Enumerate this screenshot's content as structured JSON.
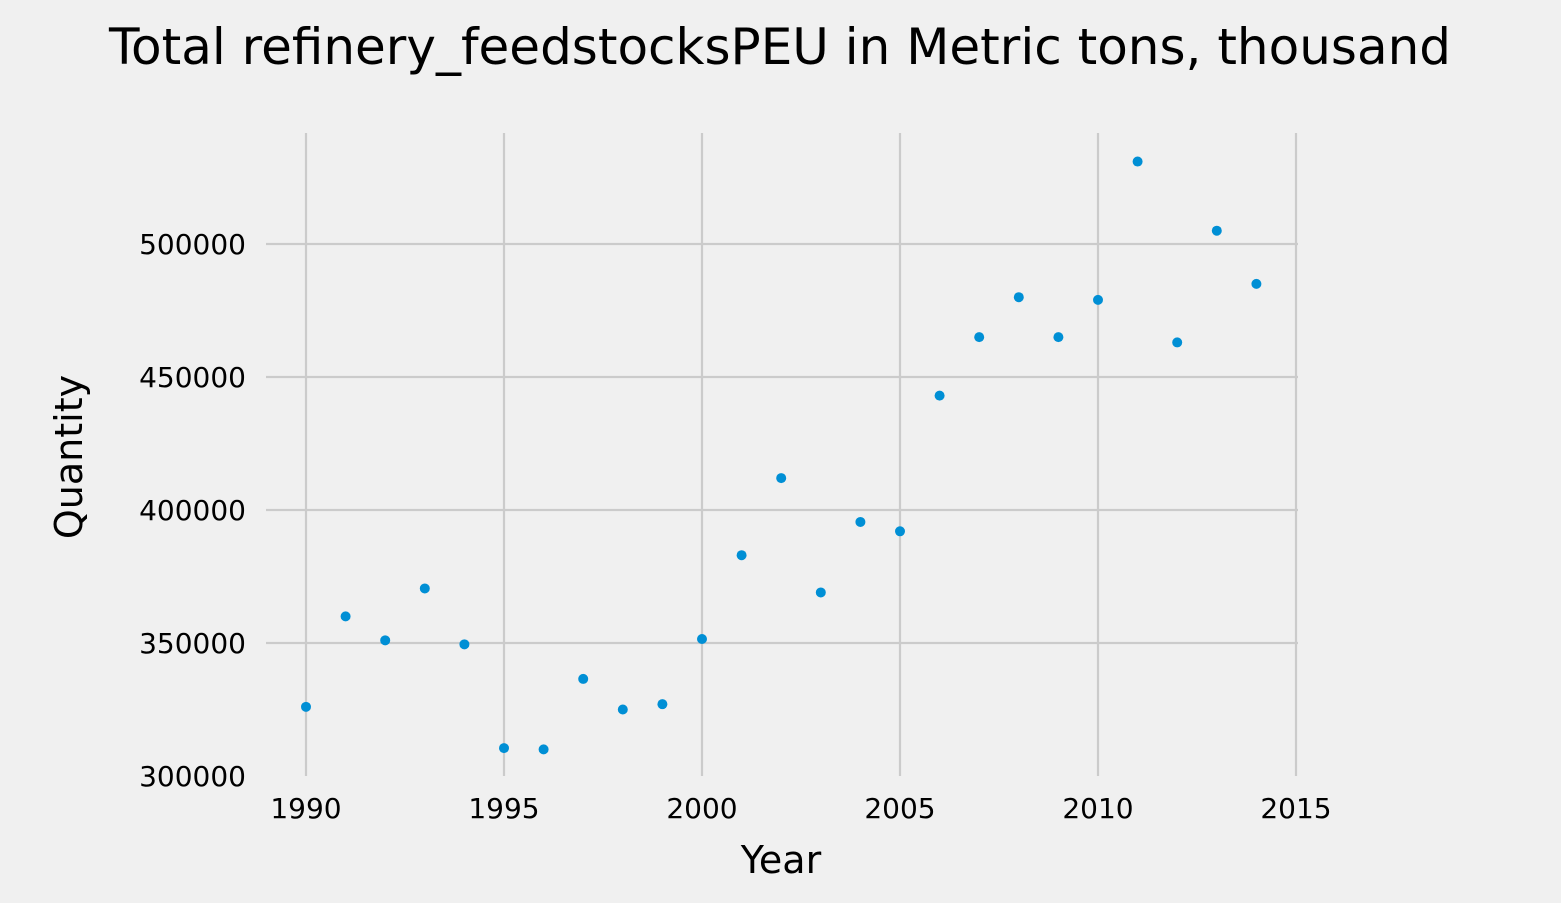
{
  "chart_data": {
    "type": "scatter",
    "title": "Total refinery_feedstocksPEU in Metric tons,  thousand",
    "xlabel": "Year",
    "ylabel": "Quantity",
    "xlim": [
      1990,
      2015
    ],
    "ylim": [
      300000,
      535000
    ],
    "x_ticks": [
      1990,
      1995,
      2000,
      2005,
      2010,
      2015
    ],
    "y_ticks": [
      300000,
      350000,
      400000,
      450000,
      500000
    ],
    "x_tick_labels": [
      "1990",
      "1995",
      "2000",
      "2005",
      "2010",
      "2015"
    ],
    "y_tick_labels": [
      "300000",
      "350000",
      "400000",
      "450000",
      "500000"
    ],
    "grid": true,
    "marker_color": "#008fd5",
    "background_color": "#f0f0f0",
    "grid_color": "#cbcbcb",
    "x": [
      1990,
      1991,
      1992,
      1993,
      1994,
      1995,
      1996,
      1997,
      1998,
      1999,
      2000,
      2001,
      2002,
      2003,
      2004,
      2005,
      2006,
      2007,
      2008,
      2009,
      2010,
      2011,
      2012,
      2013,
      2014
    ],
    "y": [
      326000,
      360000,
      351000,
      370500,
      349500,
      310500,
      310000,
      336500,
      325000,
      327000,
      351500,
      383000,
      412000,
      369000,
      395500,
      392000,
      443000,
      465000,
      480000,
      465000,
      479000,
      531000,
      463000,
      505000,
      485000
    ]
  }
}
